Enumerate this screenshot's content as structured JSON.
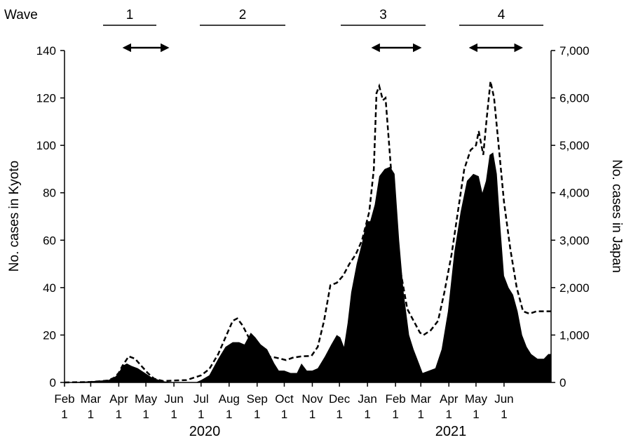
{
  "chart_data": {
    "type": "area",
    "wave_header": "Wave",
    "waves": [
      {
        "label": "1",
        "arrow_from": "2020-04-07",
        "arrow_to": "2020-05-25"
      },
      {
        "label": "2",
        "arrow_from": null,
        "arrow_to": null
      },
      {
        "label": "3",
        "arrow_from": "2021-01-07",
        "arrow_to": "2021-02-28"
      },
      {
        "label": "4",
        "arrow_from": "2021-04-25",
        "arrow_to": "2021-06-20"
      }
    ],
    "ylabel_left": "No. cases in Kyoto",
    "ylabel_right": "No. cases in Japan",
    "ylim_left": [
      0,
      140
    ],
    "ylim_right": [
      0,
      7000
    ],
    "yticks_left": [
      "0",
      "20",
      "40",
      "60",
      "80",
      "100",
      "120",
      "140"
    ],
    "yticks_right": [
      "0",
      "1,000",
      "2,000",
      "3,000",
      "4,000",
      "5,000",
      "6,000",
      "7,000"
    ],
    "xlim": [
      "2020-02-01",
      "2021-07-23"
    ],
    "xticks": [
      {
        "date": "2020-02-01",
        "month": "Feb",
        "day": "1"
      },
      {
        "date": "2020-03-01",
        "month": "Mar",
        "day": "1"
      },
      {
        "date": "2020-04-01",
        "month": "Apr",
        "day": "1"
      },
      {
        "date": "2020-05-01",
        "month": "May",
        "day": "1"
      },
      {
        "date": "2020-06-01",
        "month": "Jun",
        "day": "1"
      },
      {
        "date": "2020-07-01",
        "month": "Jul",
        "day": "1"
      },
      {
        "date": "2020-08-01",
        "month": "Aug",
        "day": "1"
      },
      {
        "date": "2020-09-01",
        "month": "Sep",
        "day": "1"
      },
      {
        "date": "2020-10-01",
        "month": "Oct",
        "day": "1"
      },
      {
        "date": "2020-11-01",
        "month": "Nov",
        "day": "1"
      },
      {
        "date": "2020-12-01",
        "month": "Dec",
        "day": "1"
      },
      {
        "date": "2021-01-01",
        "month": "Jan",
        "day": "1"
      },
      {
        "date": "2021-02-01",
        "month": "Feb",
        "day": "1"
      },
      {
        "date": "2021-03-01",
        "month": "Mar",
        "day": "1"
      },
      {
        "date": "2021-04-01",
        "month": "Apr",
        "day": "1"
      },
      {
        "date": "2021-05-01",
        "month": "May",
        "day": "1"
      },
      {
        "date": "2021-06-01",
        "month": "Jun",
        "day": "1"
      }
    ],
    "years": [
      "2020",
      "2021"
    ],
    "series": [
      {
        "name": "",
        "style": "filled-black-area",
        "axis": "left",
        "points": [
          [
            "2020-02-01",
            0
          ],
          [
            "2020-03-01",
            0.5
          ],
          [
            "2020-03-20",
            1
          ],
          [
            "2020-03-27",
            2
          ],
          [
            "2020-04-01",
            4
          ],
          [
            "2020-04-05",
            7
          ],
          [
            "2020-04-10",
            8
          ],
          [
            "2020-04-15",
            7
          ],
          [
            "2020-04-22",
            6
          ],
          [
            "2020-04-30",
            4
          ],
          [
            "2020-05-08",
            2
          ],
          [
            "2020-05-20",
            0.5
          ],
          [
            "2020-06-01",
            0
          ],
          [
            "2020-06-25",
            0
          ],
          [
            "2020-07-01",
            1
          ],
          [
            "2020-07-10",
            3
          ],
          [
            "2020-07-20",
            10
          ],
          [
            "2020-07-28",
            15
          ],
          [
            "2020-08-05",
            17
          ],
          [
            "2020-08-12",
            17
          ],
          [
            "2020-08-18",
            16
          ],
          [
            "2020-08-25",
            21
          ],
          [
            "2020-08-30",
            19
          ],
          [
            "2020-09-05",
            16
          ],
          [
            "2020-09-12",
            14
          ],
          [
            "2020-09-20",
            8
          ],
          [
            "2020-09-25",
            5
          ],
          [
            "2020-10-01",
            5
          ],
          [
            "2020-10-08",
            4
          ],
          [
            "2020-10-15",
            4
          ],
          [
            "2020-10-20",
            8
          ],
          [
            "2020-10-26",
            5
          ],
          [
            "2020-11-01",
            5
          ],
          [
            "2020-11-07",
            6
          ],
          [
            "2020-11-15",
            11
          ],
          [
            "2020-11-22",
            16
          ],
          [
            "2020-11-28",
            20
          ],
          [
            "2020-12-02",
            19
          ],
          [
            "2020-12-06",
            15
          ],
          [
            "2020-12-10",
            25
          ],
          [
            "2020-12-14",
            38
          ],
          [
            "2020-12-20",
            50
          ],
          [
            "2020-12-26",
            59
          ],
          [
            "2020-12-31",
            68
          ],
          [
            "2021-01-04",
            68
          ],
          [
            "2021-01-09",
            75
          ],
          [
            "2021-01-14",
            87
          ],
          [
            "2021-01-20",
            90
          ],
          [
            "2021-01-26",
            91
          ],
          [
            "2021-01-31",
            88
          ],
          [
            "2021-02-05",
            60
          ],
          [
            "2021-02-10",
            38
          ],
          [
            "2021-02-16",
            20
          ],
          [
            "2021-02-21",
            14
          ],
          [
            "2021-02-27",
            8
          ],
          [
            "2021-03-03",
            4
          ],
          [
            "2021-03-10",
            5
          ],
          [
            "2021-03-17",
            6
          ],
          [
            "2021-03-24",
            14
          ],
          [
            "2021-03-31",
            30
          ],
          [
            "2021-04-07",
            55
          ],
          [
            "2021-04-14",
            72
          ],
          [
            "2021-04-21",
            85
          ],
          [
            "2021-04-28",
            88
          ],
          [
            "2021-05-04",
            87
          ],
          [
            "2021-05-08",
            80
          ],
          [
            "2021-05-12",
            85
          ],
          [
            "2021-05-16",
            96
          ],
          [
            "2021-05-20",
            97
          ],
          [
            "2021-05-24",
            88
          ],
          [
            "2021-05-28",
            65
          ],
          [
            "2021-06-01",
            45
          ],
          [
            "2021-06-06",
            40
          ],
          [
            "2021-06-11",
            37
          ],
          [
            "2021-06-16",
            30
          ],
          [
            "2021-06-21",
            20
          ],
          [
            "2021-06-26",
            15
          ],
          [
            "2021-07-01",
            12
          ],
          [
            "2021-07-08",
            10
          ],
          [
            "2021-07-15",
            10
          ],
          [
            "2021-07-20",
            12
          ],
          [
            "2021-07-23",
            12
          ]
        ]
      },
      {
        "name": "",
        "style": "dashed-line",
        "axis": "right",
        "points": [
          [
            "2020-02-01",
            0
          ],
          [
            "2020-03-01",
            10
          ],
          [
            "2020-03-20",
            40
          ],
          [
            "2020-03-27",
            100
          ],
          [
            "2020-04-01",
            200
          ],
          [
            "2020-04-05",
            350
          ],
          [
            "2020-04-12",
            550
          ],
          [
            "2020-04-19",
            500
          ],
          [
            "2020-04-26",
            350
          ],
          [
            "2020-05-03",
            200
          ],
          [
            "2020-05-10",
            80
          ],
          [
            "2020-05-20",
            30
          ],
          [
            "2020-06-01",
            40
          ],
          [
            "2020-06-15",
            50
          ],
          [
            "2020-07-01",
            150
          ],
          [
            "2020-07-10",
            280
          ],
          [
            "2020-07-20",
            600
          ],
          [
            "2020-07-28",
            950
          ],
          [
            "2020-08-05",
            1300
          ],
          [
            "2020-08-10",
            1350
          ],
          [
            "2020-08-16",
            1200
          ],
          [
            "2020-08-24",
            900
          ],
          [
            "2020-09-01",
            620
          ],
          [
            "2020-09-10",
            550
          ],
          [
            "2020-09-20",
            530
          ],
          [
            "2020-09-27",
            500
          ],
          [
            "2020-10-03",
            470
          ],
          [
            "2020-10-10",
            520
          ],
          [
            "2020-10-20",
            550
          ],
          [
            "2020-10-31",
            560
          ],
          [
            "2020-11-07",
            750
          ],
          [
            "2020-11-14",
            1300
          ],
          [
            "2020-11-21",
            2050
          ],
          [
            "2020-11-28",
            2100
          ],
          [
            "2020-12-05",
            2250
          ],
          [
            "2020-12-12",
            2500
          ],
          [
            "2020-12-19",
            2700
          ],
          [
            "2020-12-26",
            3000
          ],
          [
            "2021-01-03",
            3600
          ],
          [
            "2021-01-08",
            4500
          ],
          [
            "2021-01-11",
            6100
          ],
          [
            "2021-01-14",
            6250
          ],
          [
            "2021-01-18",
            5950
          ],
          [
            "2021-01-21",
            6000
          ],
          [
            "2021-01-25",
            5000
          ],
          [
            "2021-01-31",
            3500
          ],
          [
            "2021-02-07",
            2300
          ],
          [
            "2021-02-14",
            1550
          ],
          [
            "2021-02-21",
            1300
          ],
          [
            "2021-02-28",
            1050
          ],
          [
            "2021-03-04",
            1000
          ],
          [
            "2021-03-12",
            1100
          ],
          [
            "2021-03-20",
            1300
          ],
          [
            "2021-03-27",
            1900
          ],
          [
            "2021-04-04",
            2700
          ],
          [
            "2021-04-11",
            3600
          ],
          [
            "2021-04-18",
            4500
          ],
          [
            "2021-04-25",
            4900
          ],
          [
            "2021-05-01",
            5000
          ],
          [
            "2021-05-04",
            5300
          ],
          [
            "2021-05-09",
            4800
          ],
          [
            "2021-05-13",
            5600
          ],
          [
            "2021-05-17",
            6350
          ],
          [
            "2021-05-21",
            6000
          ],
          [
            "2021-05-26",
            5000
          ],
          [
            "2021-06-01",
            3800
          ],
          [
            "2021-06-08",
            2800
          ],
          [
            "2021-06-15",
            2000
          ],
          [
            "2021-06-22",
            1500
          ],
          [
            "2021-06-29",
            1450
          ],
          [
            "2021-07-07",
            1500
          ],
          [
            "2021-07-15",
            1500
          ],
          [
            "2021-07-23",
            1500
          ]
        ]
      }
    ]
  }
}
